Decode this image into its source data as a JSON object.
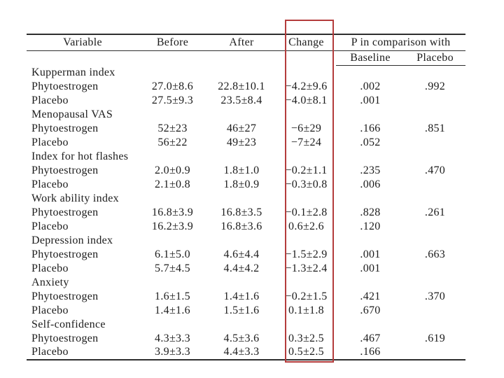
{
  "annotation": {
    "name": "change-column-highlight",
    "color": "#b43c3c"
  },
  "table": {
    "header": {
      "variable": "Variable",
      "before": "Before",
      "after": "After",
      "change": "Change",
      "p_group": "P in comparison with",
      "baseline": "Baseline",
      "placebo": "Placebo"
    },
    "rows": [
      {
        "type": "section",
        "label": "Kupperman index"
      },
      {
        "type": "data",
        "label": "Phytoestrogen",
        "before": "27.0±8.6",
        "after": "22.8±10.1",
        "change": "−4.2±9.6",
        "p_baseline": ".002",
        "p_placebo": ".992"
      },
      {
        "type": "data",
        "label": "Placebo",
        "before": "27.5±9.3",
        "after": "23.5±8.4",
        "change": "−4.0±8.1",
        "p_baseline": ".001",
        "p_placebo": ""
      },
      {
        "type": "section",
        "label": "Menopausal VAS"
      },
      {
        "type": "data",
        "label": "Phytoestrogen",
        "before": "52±23",
        "after": "46±27",
        "change": "−6±29",
        "p_baseline": ".166",
        "p_placebo": ".851"
      },
      {
        "type": "data",
        "label": "Placebo",
        "before": "56±22",
        "after": "49±23",
        "change": "−7±24",
        "p_baseline": ".052",
        "p_placebo": ""
      },
      {
        "type": "section",
        "label": "Index for hot flashes"
      },
      {
        "type": "data",
        "label": "Phytoestrogen",
        "before": "2.0±0.9",
        "after": "1.8±1.0",
        "change": "−0.2±1.1",
        "p_baseline": ".235",
        "p_placebo": ".470"
      },
      {
        "type": "data",
        "label": "Placebo",
        "before": "2.1±0.8",
        "after": "1.8±0.9",
        "change": "−0.3±0.8",
        "p_baseline": ".006",
        "p_placebo": ""
      },
      {
        "type": "section",
        "label": "Work ability index"
      },
      {
        "type": "data",
        "label": "Phytoestrogen",
        "before": "16.8±3.9",
        "after": "16.8±3.5",
        "change": "−0.1±2.8",
        "p_baseline": ".828",
        "p_placebo": ".261"
      },
      {
        "type": "data",
        "label": "Placebo",
        "before": "16.2±3.9",
        "after": "16.8±3.6",
        "change": "0.6±2.6",
        "p_baseline": ".120",
        "p_placebo": ""
      },
      {
        "type": "section",
        "label": "Depression index"
      },
      {
        "type": "data",
        "label": "Phytoestrogen",
        "before": "6.1±5.0",
        "after": "4.6±4.4",
        "change": "−1.5±2.9",
        "p_baseline": ".001",
        "p_placebo": ".663"
      },
      {
        "type": "data",
        "label": "Placebo",
        "before": "5.7±4.5",
        "after": "4.4±4.2",
        "change": "−1.3±2.4",
        "p_baseline": ".001",
        "p_placebo": ""
      },
      {
        "type": "section",
        "label": "Anxiety"
      },
      {
        "type": "data",
        "label": "Phytoestrogen",
        "before": "1.6±1.5",
        "after": "1.4±1.6",
        "change": "−0.2±1.5",
        "p_baseline": ".421",
        "p_placebo": ".370"
      },
      {
        "type": "data",
        "label": "Placebo",
        "before": "1.4±1.6",
        "after": "1.5±1.6",
        "change": "0.1±1.8",
        "p_baseline": ".670",
        "p_placebo": ""
      },
      {
        "type": "section",
        "label": "Self-confidence"
      },
      {
        "type": "data",
        "label": "Phytoestrogen",
        "before": "4.3±3.3",
        "after": "4.5±3.6",
        "change": "0.3±2.5",
        "p_baseline": ".467",
        "p_placebo": ".619"
      },
      {
        "type": "data",
        "label": "Placebo",
        "before": "3.9±3.3",
        "after": "4.4±3.3",
        "change": "0.5±2.5",
        "p_baseline": ".166",
        "p_placebo": ""
      }
    ]
  }
}
